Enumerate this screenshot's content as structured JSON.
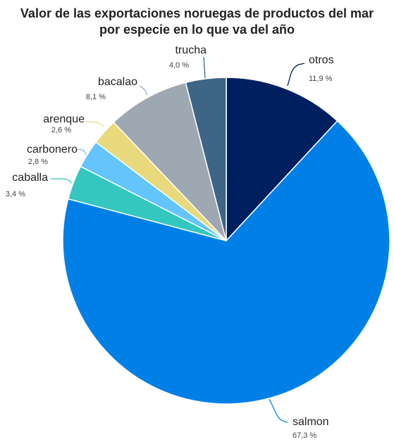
{
  "chart_data": {
    "type": "pie",
    "title_lines": [
      "Valor de las exportaciones noruegas de productos del mar",
      "por especie en lo que va del año"
    ],
    "slices": [
      {
        "label": "otros",
        "value": 11.9,
        "value_label": "11,9 %",
        "color": "#001f5f"
      },
      {
        "label": "salmon",
        "value": 67.3,
        "value_label": "67,3 %",
        "color": "#0080e6"
      },
      {
        "label": "caballa",
        "value": 3.4,
        "value_label": "3,4 %",
        "color": "#33c7c0"
      },
      {
        "label": "carbonero",
        "value": 2.8,
        "value_label": "2,8 %",
        "color": "#63c5fb"
      },
      {
        "label": "arenque",
        "value": 2.6,
        "value_label": "2,6 %",
        "color": "#e8d97c"
      },
      {
        "label": "bacalao",
        "value": 8.1,
        "value_label": "8,1 %",
        "color": "#9ea8b3"
      },
      {
        "label": "trucha",
        "value": 4.0,
        "value_label": "4,0 %",
        "color": "#3e6486"
      }
    ],
    "start_angle": "12 o'clock",
    "direction": "clockwise"
  }
}
